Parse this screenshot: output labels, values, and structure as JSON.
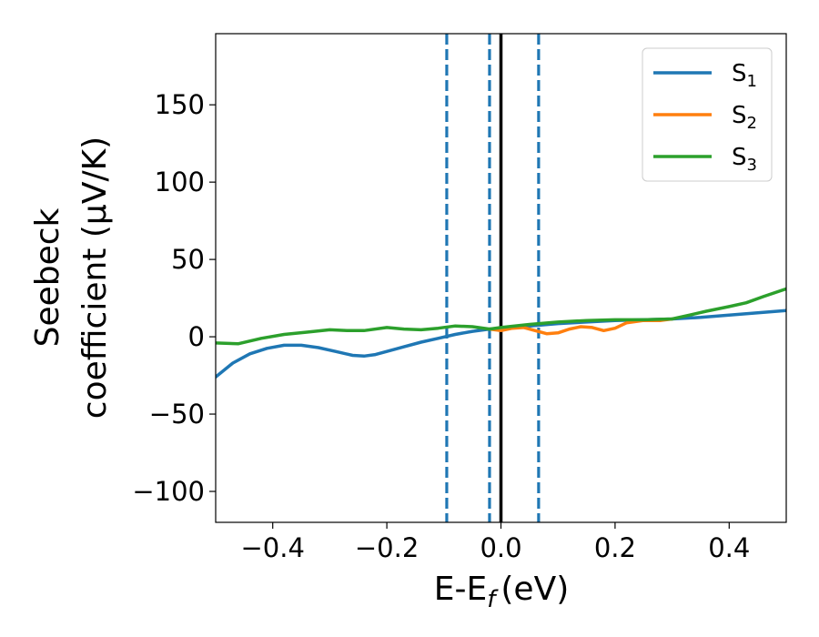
{
  "chart_data": {
    "type": "line",
    "xlabel": "E-E",
    "xlabel_sub": "f",
    "xlabel_unit": "(eV)",
    "ylabel_line1": "Seebeck",
    "ylabel_line2": "coefficient  (μV/K)",
    "xlim": [
      -0.5,
      0.5
    ],
    "ylim": [
      -120,
      196
    ],
    "x_ticks": [
      -0.4,
      -0.2,
      0.0,
      0.2,
      0.4
    ],
    "x_tick_labels": [
      "−0.4",
      "−0.2",
      "0.0",
      "0.2",
      "0.4"
    ],
    "y_ticks": [
      -100,
      -50,
      0,
      50,
      100,
      150
    ],
    "y_tick_labels": [
      "−100",
      "−50",
      "0",
      "50",
      "100",
      "150"
    ],
    "legend_position": "top-right",
    "vlines": [
      {
        "x": -0.095,
        "style": "dashed",
        "color": "#1f77b4"
      },
      {
        "x": -0.02,
        "style": "dashed",
        "color": "#1f77b4"
      },
      {
        "x": 0.0,
        "style": "solid",
        "color": "#000000"
      },
      {
        "x": 0.066,
        "style": "dashed",
        "color": "#1f77b4"
      }
    ],
    "series": [
      {
        "name": "S",
        "sub": "1",
        "color": "#1f77b4",
        "x": [
          -0.5,
          -0.47,
          -0.44,
          -0.41,
          -0.38,
          -0.35,
          -0.32,
          -0.29,
          -0.26,
          -0.24,
          -0.22,
          -0.2,
          -0.17,
          -0.14,
          -0.11,
          -0.08,
          -0.05,
          -0.02,
          0.0,
          0.05,
          0.1,
          0.15,
          0.2,
          0.25,
          0.3,
          0.35,
          0.4,
          0.45,
          0.5
        ],
        "y": [
          -26,
          -17,
          -11,
          -7.5,
          -5.5,
          -5.5,
          -7,
          -9.5,
          -12,
          -12.5,
          -11.5,
          -9.5,
          -6.5,
          -3.5,
          -1,
          1.5,
          3.5,
          5,
          5.5,
          7,
          8.5,
          9.5,
          10.5,
          11,
          11.5,
          12.5,
          14,
          15.5,
          17
        ]
      },
      {
        "name": "S",
        "sub": "2",
        "color": "#ff7f0e",
        "x": [
          -0.02,
          0.0,
          0.02,
          0.04,
          0.06,
          0.08,
          0.1,
          0.12,
          0.14,
          0.16,
          0.18,
          0.2,
          0.22,
          0.25,
          0.28,
          0.3
        ],
        "y": [
          5,
          4,
          5.5,
          6,
          4,
          2,
          2.5,
          5,
          6.5,
          6,
          4,
          5.5,
          9,
          10.5,
          10.5,
          11.5
        ]
      },
      {
        "name": "S",
        "sub": "3",
        "color": "#2ca02c",
        "x": [
          -0.5,
          -0.46,
          -0.42,
          -0.38,
          -0.34,
          -0.3,
          -0.27,
          -0.24,
          -0.2,
          -0.17,
          -0.14,
          -0.11,
          -0.08,
          -0.05,
          -0.02,
          0.0,
          0.05,
          0.1,
          0.15,
          0.2,
          0.25,
          0.3,
          0.33,
          0.36,
          0.4,
          0.43,
          0.46,
          0.5
        ],
        "y": [
          -4,
          -4.5,
          -1,
          1.5,
          3,
          4.5,
          4,
          4,
          6,
          5,
          4.5,
          5.5,
          7,
          6.5,
          5,
          6,
          8,
          9.5,
          10.5,
          11,
          11,
          11.5,
          14,
          16.5,
          19.5,
          22,
          26,
          31
        ]
      }
    ]
  }
}
